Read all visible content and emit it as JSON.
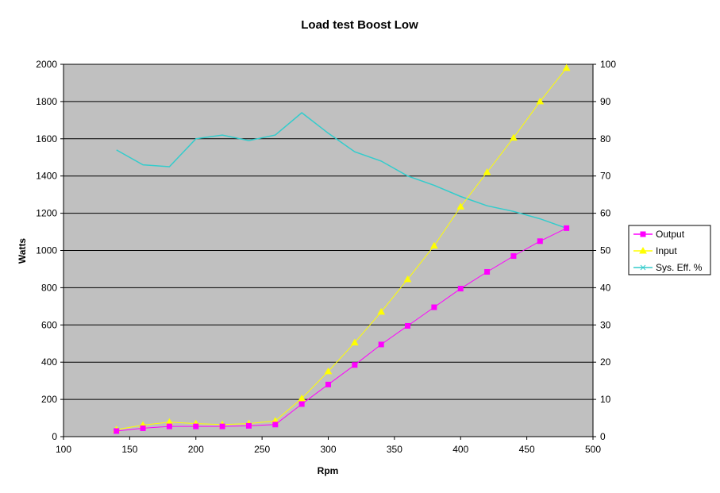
{
  "chart_data": {
    "type": "line",
    "title": "Load test Boost Low",
    "xlabel": "Rpm",
    "ylabel": "Watts",
    "y2label": "",
    "xlim": [
      100,
      500
    ],
    "ylim": [
      0,
      2000
    ],
    "y2lim": [
      0,
      100
    ],
    "x_ticks": [
      100,
      150,
      200,
      250,
      300,
      350,
      400,
      450,
      500
    ],
    "y_ticks": [
      0,
      200,
      400,
      600,
      800,
      1000,
      1200,
      1400,
      1600,
      1800,
      2000
    ],
    "y2_ticks": [
      0,
      10,
      20,
      30,
      40,
      50,
      60,
      70,
      80,
      90,
      100
    ],
    "grid": "horizontal",
    "plot_background": "#c0c0c0",
    "legend_position": "right",
    "series": [
      {
        "name": "Output",
        "axis": "left",
        "color": "#ff00ff",
        "marker": "square",
        "x": [
          140,
          160,
          180,
          200,
          220,
          240,
          260,
          280,
          300,
          320,
          340,
          360,
          380,
          400,
          420,
          440,
          460,
          480
        ],
        "y": [
          30,
          45,
          55,
          55,
          55,
          58,
          65,
          175,
          280,
          385,
          495,
          595,
          695,
          795,
          885,
          970,
          1050,
          1120
        ]
      },
      {
        "name": "Input",
        "axis": "left",
        "color": "#ffff00",
        "marker": "triangle",
        "x": [
          140,
          160,
          180,
          200,
          220,
          240,
          260,
          280,
          300,
          320,
          340,
          360,
          380,
          400,
          420,
          440,
          460,
          480
        ],
        "y": [
          38,
          62,
          78,
          70,
          65,
          70,
          85,
          205,
          350,
          505,
          670,
          845,
          1025,
          1235,
          1420,
          1605,
          1800,
          1980
        ]
      },
      {
        "name": "Sys. Eff. %",
        "axis": "right",
        "color": "#33cccc",
        "marker": "x",
        "x": [
          140,
          160,
          180,
          200,
          220,
          240,
          260,
          280,
          300,
          320,
          340,
          360,
          380,
          400,
          420,
          440,
          460,
          480
        ],
        "y": [
          77,
          73,
          72.5,
          80,
          81,
          79.5,
          81,
          87,
          81.5,
          76.5,
          74,
          70,
          67.5,
          64.5,
          62,
          60.5,
          58.5,
          56
        ]
      }
    ]
  }
}
